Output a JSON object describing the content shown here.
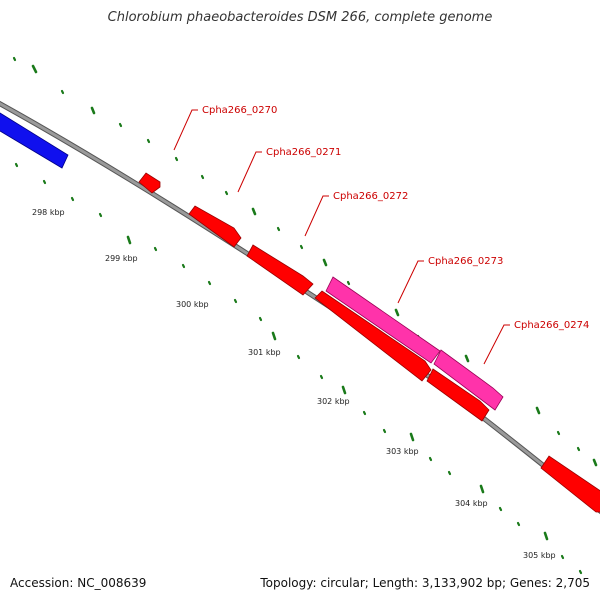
{
  "title": "Chlorobium phaeobacteroides DSM 266, complete genome",
  "footer": {
    "accession": "Accession: NC_008639",
    "stats": "Topology: circular; Length: 3,133,902 bp; Genes: 2,705"
  },
  "colors": {
    "backbone": "#888888",
    "backbone_dark": "#555555",
    "tick": "#1a7a1a",
    "gene_forward": "#ff0000",
    "gene_highlight": "#ff33aa",
    "gene_blue": "#0000ee",
    "label": "#cc0000"
  },
  "scale_ticks": [
    {
      "label": "298 kbp"
    },
    {
      "label": "299 kbp"
    },
    {
      "label": "300 kbp"
    },
    {
      "label": "301 kbp"
    },
    {
      "label": "302 kbp"
    },
    {
      "label": "303 kbp"
    },
    {
      "label": "304 kbp"
    },
    {
      "label": "305 kbp"
    }
  ],
  "gene_labels": [
    "Cpha266_0270",
    "Cpha266_0271",
    "Cpha266_0272",
    "Cpha266_0273",
    "Cpha266_0274"
  ]
}
